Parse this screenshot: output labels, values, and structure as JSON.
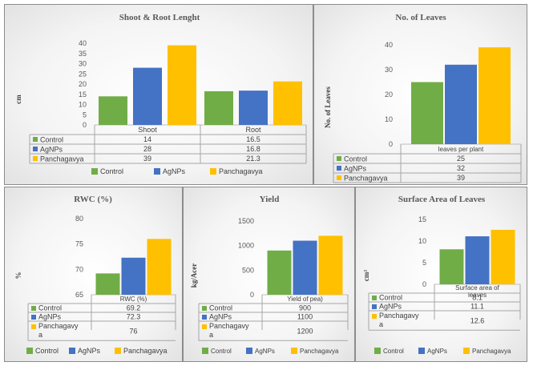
{
  "colors": {
    "control": "#70ad47",
    "agnps": "#4472c4",
    "panchagavya": "#ffc000"
  },
  "chart_data": [
    {
      "type": "bar",
      "title": "Shoot & Root Lenght",
      "ylabel": "cm",
      "ylim": [
        0,
        40
      ],
      "yticks": [
        0,
        5,
        10,
        15,
        20,
        25,
        30,
        35,
        40
      ],
      "categories": [
        "Shoot",
        "Root"
      ],
      "series": [
        {
          "name": "Control",
          "values": [
            14,
            16.5
          ],
          "cells": [
            "14",
            "16.5"
          ]
        },
        {
          "name": "AgNPs",
          "values": [
            28,
            16.8
          ],
          "cells": [
            "28",
            "16.8"
          ]
        },
        {
          "name": "Panchagavya",
          "values": [
            39,
            21.3
          ],
          "cells": [
            "39",
            "21.3"
          ]
        }
      ],
      "legend": [
        "Control",
        "AgNPs",
        "Panchagavya"
      ],
      "legend_position": "bottom"
    },
    {
      "type": "bar",
      "title": "No. of Leaves",
      "ylabel": "No. of Leaves",
      "ylim": [
        0,
        40
      ],
      "yticks": [
        0,
        10,
        20,
        30,
        40
      ],
      "categories": [
        "leaves per plant"
      ],
      "series": [
        {
          "name": "Control",
          "values": [
            25
          ],
          "cells": [
            "25"
          ]
        },
        {
          "name": "AgNPs",
          "values": [
            32
          ],
          "cells": [
            "32"
          ]
        },
        {
          "name": "Panchagavya",
          "values": [
            39
          ],
          "cells": [
            "39"
          ]
        }
      ],
      "legend": [],
      "legend_position": "none"
    },
    {
      "type": "bar",
      "title": "RWC (%)",
      "ylabel": "%",
      "ylim": [
        65,
        80
      ],
      "yticks": [
        65,
        70,
        75,
        80
      ],
      "categories": [
        "RWC   (%)"
      ],
      "series": [
        {
          "name": "Control",
          "values": [
            69.2
          ],
          "cells": [
            "69.2"
          ]
        },
        {
          "name": "AgNPs",
          "values": [
            72.3
          ],
          "cells": [
            "72.3"
          ]
        },
        {
          "name": "Panchagavy a",
          "values": [
            76
          ],
          "cells": [
            "76"
          ]
        }
      ],
      "legend": [
        "Control",
        "AgNPs",
        "Panchagavya"
      ],
      "legend_position": "bottom"
    },
    {
      "type": "bar",
      "title": "Yield",
      "ylabel": "kg/Acer",
      "ylim": [
        0,
        1500
      ],
      "yticks": [
        0,
        500,
        1000,
        1500
      ],
      "categories": [
        "Yield of pea)"
      ],
      "series": [
        {
          "name": "Control",
          "values": [
            900
          ],
          "cells": [
            "900"
          ]
        },
        {
          "name": "AgNPs",
          "values": [
            1100
          ],
          "cells": [
            "1100"
          ]
        },
        {
          "name": "Panchagavy a",
          "values": [
            1200
          ],
          "cells": [
            "1200"
          ]
        }
      ],
      "legend": [
        "Control",
        "AgNPs",
        "Panchagavya"
      ],
      "legend_position": "bottom"
    },
    {
      "type": "bar",
      "title": "Surface Area of Leaves",
      "ylabel": "cm²",
      "ylim": [
        0,
        15
      ],
      "yticks": [
        0,
        5,
        10,
        15
      ],
      "categories": [
        "Surface area of leaves"
      ],
      "series": [
        {
          "name": "Control",
          "values": [
            8.1
          ],
          "cells": [
            "8.1"
          ]
        },
        {
          "name": "AgNPs",
          "values": [
            11.1
          ],
          "cells": [
            "11.1"
          ]
        },
        {
          "name": "Panchagavy a",
          "values": [
            12.6
          ],
          "cells": [
            "12.6"
          ]
        }
      ],
      "legend": [
        "Control",
        "AgNPs",
        "Panchagavya"
      ],
      "legend_position": "bottom"
    }
  ]
}
